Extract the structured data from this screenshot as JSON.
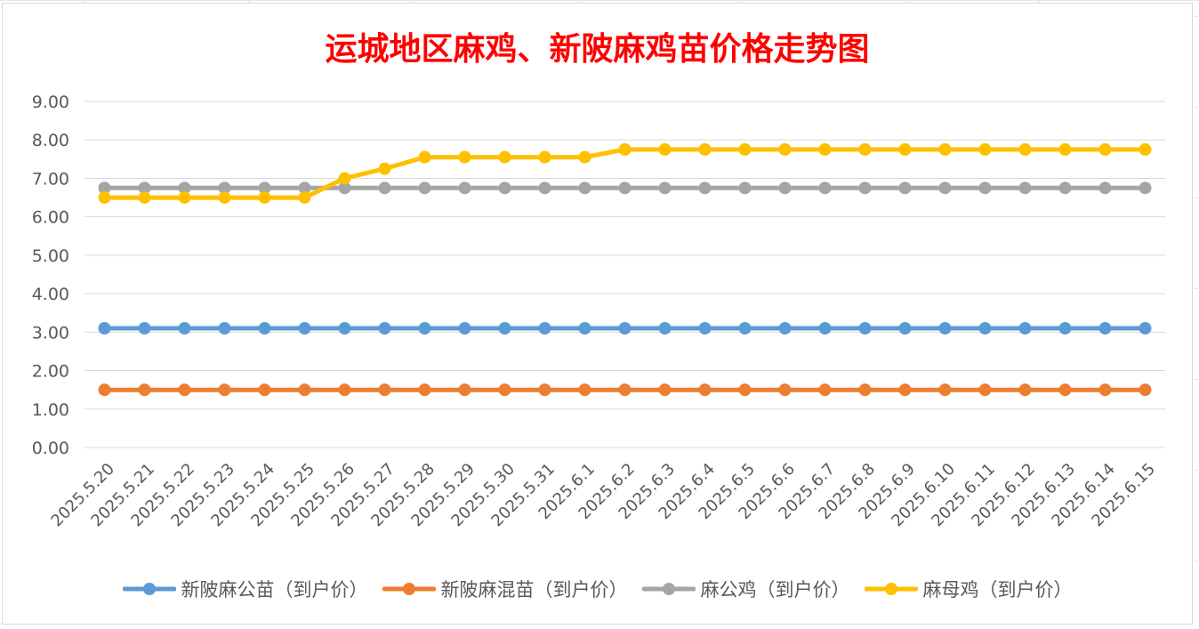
{
  "chart_data": {
    "type": "line",
    "title": "运城地区麻鸡、新陂麻鸡苗价格走势图",
    "xlabel": "",
    "ylabel": "",
    "ylim": [
      0,
      9
    ],
    "y_ticks": [
      "0.00",
      "1.00",
      "2.00",
      "3.00",
      "4.00",
      "5.00",
      "6.00",
      "7.00",
      "8.00",
      "9.00"
    ],
    "grid": "horizontal",
    "legend_position": "bottom",
    "categories": [
      "2025.5.20",
      "2025.5.21",
      "2025.5.22",
      "2025.5.23",
      "2025.5.24",
      "2025.5.25",
      "2025.5.26",
      "2025.5.27",
      "2025.5.28",
      "2025.5.29",
      "2025.5.30",
      "2025.5.31",
      "2025.6.1",
      "2025.6.2",
      "2025.6.3",
      "2025.6.4",
      "2025.6.5",
      "2025.6.6",
      "2025.6.7",
      "2025.6.8",
      "2025.6.9",
      "2025.6.10",
      "2025.6.11",
      "2025.6.12",
      "2025.6.13",
      "2025.6.14",
      "2025.6.15"
    ],
    "series": [
      {
        "name": "新陂麻公苗（到户价）",
        "color": "#5b9bd5",
        "values": [
          3.1,
          3.1,
          3.1,
          3.1,
          3.1,
          3.1,
          3.1,
          3.1,
          3.1,
          3.1,
          3.1,
          3.1,
          3.1,
          3.1,
          3.1,
          3.1,
          3.1,
          3.1,
          3.1,
          3.1,
          3.1,
          3.1,
          3.1,
          3.1,
          3.1,
          3.1,
          3.1
        ]
      },
      {
        "name": "新陂麻混苗（到户价）",
        "color": "#ed7d31",
        "values": [
          1.5,
          1.5,
          1.5,
          1.5,
          1.5,
          1.5,
          1.5,
          1.5,
          1.5,
          1.5,
          1.5,
          1.5,
          1.5,
          1.5,
          1.5,
          1.5,
          1.5,
          1.5,
          1.5,
          1.5,
          1.5,
          1.5,
          1.5,
          1.5,
          1.5,
          1.5,
          1.5
        ]
      },
      {
        "name": "麻公鸡（到户价）",
        "color": "#a5a5a5",
        "values": [
          6.75,
          6.75,
          6.75,
          6.75,
          6.75,
          6.75,
          6.75,
          6.75,
          6.75,
          6.75,
          6.75,
          6.75,
          6.75,
          6.75,
          6.75,
          6.75,
          6.75,
          6.75,
          6.75,
          6.75,
          6.75,
          6.75,
          6.75,
          6.75,
          6.75,
          6.75,
          6.75
        ]
      },
      {
        "name": "麻母鸡（到户价）",
        "color": "#ffc000",
        "values": [
          6.5,
          6.5,
          6.5,
          6.5,
          6.5,
          6.5,
          7.0,
          7.25,
          7.55,
          7.55,
          7.55,
          7.55,
          7.55,
          7.75,
          7.75,
          7.75,
          7.75,
          7.75,
          7.75,
          7.75,
          7.75,
          7.75,
          7.75,
          7.75,
          7.75,
          7.75,
          7.75
        ]
      }
    ]
  }
}
